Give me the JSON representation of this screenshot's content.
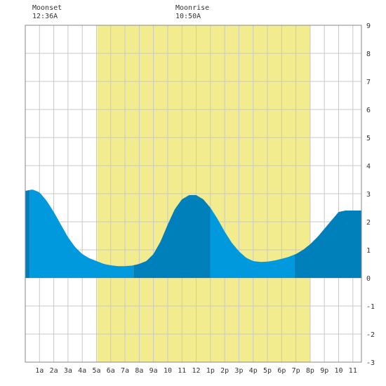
{
  "chart_data": {
    "type": "area",
    "xlabel": "",
    "ylabel": "",
    "xlim": [
      0,
      23.6
    ],
    "ylim": [
      -3,
      9
    ],
    "y_ticks": [
      -3,
      -2,
      -1,
      0,
      1,
      2,
      3,
      4,
      5,
      6,
      7,
      8,
      9
    ],
    "x_ticks": [
      {
        "hour": 1,
        "label": "1a"
      },
      {
        "hour": 2,
        "label": "2a"
      },
      {
        "hour": 3,
        "label": "3a"
      },
      {
        "hour": 4,
        "label": "4a"
      },
      {
        "hour": 5,
        "label": "5a"
      },
      {
        "hour": 6,
        "label": "6a"
      },
      {
        "hour": 7,
        "label": "7a"
      },
      {
        "hour": 8,
        "label": "8a"
      },
      {
        "hour": 9,
        "label": "9a"
      },
      {
        "hour": 10,
        "label": "10"
      },
      {
        "hour": 11,
        "label": "11"
      },
      {
        "hour": 12,
        "label": "12"
      },
      {
        "hour": 13,
        "label": "1p"
      },
      {
        "hour": 14,
        "label": "2p"
      },
      {
        "hour": 15,
        "label": "3p"
      },
      {
        "hour": 16,
        "label": "4p"
      },
      {
        "hour": 17,
        "label": "5p"
      },
      {
        "hour": 18,
        "label": "6p"
      },
      {
        "hour": 19,
        "label": "7p"
      },
      {
        "hour": 20,
        "label": "8p"
      },
      {
        "hour": 21,
        "label": "9p"
      },
      {
        "hour": 22,
        "label": "10"
      },
      {
        "hour": 23,
        "label": "11"
      }
    ],
    "daylight": {
      "start_hour": 5.05,
      "end_hour": 20.0
    },
    "tide": {
      "hours": [
        0.0,
        0.5,
        1.0,
        1.5,
        2.0,
        2.5,
        3.0,
        3.5,
        4.0,
        4.5,
        5.0,
        5.5,
        6.0,
        6.5,
        7.0,
        7.5,
        8.0,
        8.5,
        9.0,
        9.5,
        10.0,
        10.5,
        11.0,
        11.5,
        12.0,
        12.5,
        13.0,
        13.5,
        14.0,
        14.5,
        15.0,
        15.5,
        16.0,
        16.5,
        17.0,
        17.5,
        18.0,
        18.5,
        19.0,
        19.5,
        20.0,
        20.5,
        21.0,
        21.5,
        22.0,
        22.5,
        23.0,
        23.5,
        23.6
      ],
      "heights": [
        3.1,
        3.15,
        3.05,
        2.75,
        2.35,
        1.9,
        1.45,
        1.1,
        0.85,
        0.7,
        0.6,
        0.5,
        0.45,
        0.42,
        0.42,
        0.44,
        0.5,
        0.6,
        0.85,
        1.3,
        1.9,
        2.45,
        2.8,
        2.95,
        2.95,
        2.8,
        2.5,
        2.1,
        1.65,
        1.25,
        0.95,
        0.72,
        0.6,
        0.57,
        0.58,
        0.62,
        0.68,
        0.75,
        0.85,
        1.0,
        1.2,
        1.45,
        1.75,
        2.05,
        2.35,
        2.4,
        2.4,
        2.4,
        2.4
      ]
    },
    "series": [
      {
        "color": "#0099dd",
        "ranges": [
          [
            0.3,
            7.6
          ],
          [
            13.0,
            18.9
          ]
        ]
      },
      {
        "color": "#0080bb",
        "ranges": [
          [
            0.0,
            0.3
          ],
          [
            7.6,
            13.0
          ],
          [
            18.9,
            23.6
          ]
        ]
      }
    ],
    "grid": true,
    "colors": {
      "daylight": "#f2ec8f",
      "grid": "#c8c8c8",
      "border": "#888888"
    }
  },
  "annotations": [
    {
      "label": "Moonset",
      "time": "12:36A",
      "hour": 0.6
    },
    {
      "label": "Moonrise",
      "time": "10:50A",
      "hour": 10.83
    }
  ]
}
